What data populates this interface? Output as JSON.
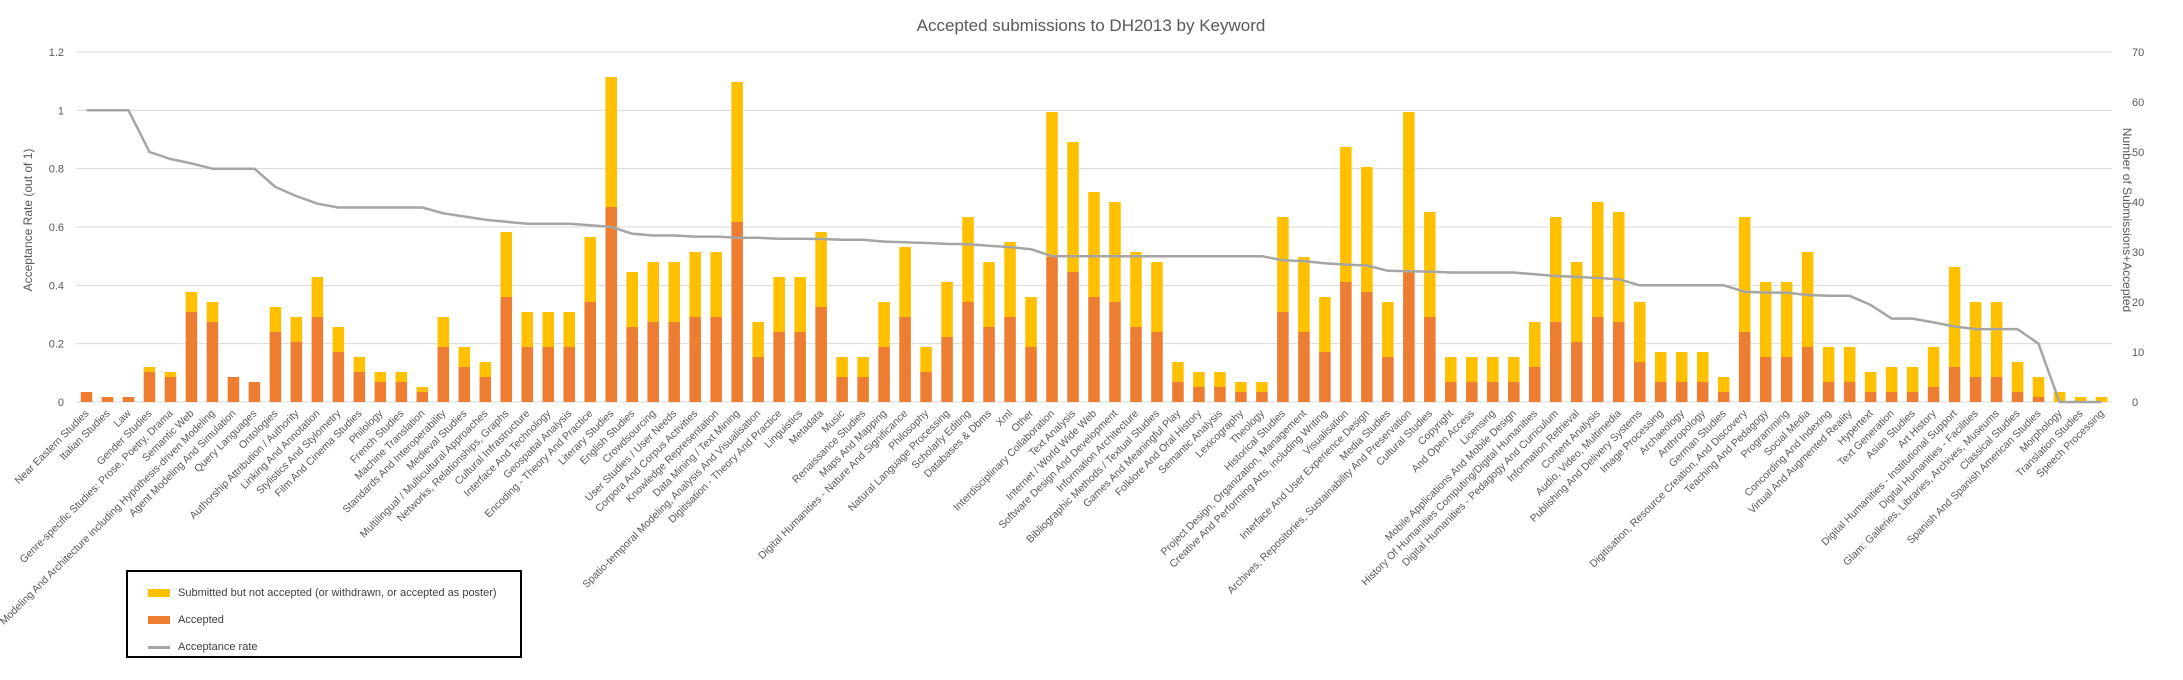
{
  "colors": {
    "submitted": "#FFC000",
    "accepted": "#ED7D31",
    "rate": "#A5A5A5",
    "grid": "#D9D9D9",
    "text": "#595959"
  },
  "legend": {
    "submitted": "Submitted but not accepted (or withdrawn, or accepted as poster)",
    "accepted": "Accepted",
    "rate": "Acceptance rate"
  },
  "chart_data": {
    "type": "bar",
    "stacked": true,
    "title": "Accepted submissions to DH2013 by Keyword",
    "ylabel": "Acceptance Rate (out of 1)",
    "y2label": "Number of Submissions+Accepted",
    "ylim": [
      0,
      1.2
    ],
    "y2lim": [
      0,
      70
    ],
    "yticks": [
      "0",
      "0.2",
      "0.4",
      "0.6",
      "0.8",
      "1",
      "1.2"
    ],
    "y2ticks": [
      "0",
      "10",
      "20",
      "30",
      "40",
      "50",
      "60",
      "70"
    ],
    "grid": true,
    "legend_position": "bottom-left",
    "categories": [
      "Near Eastern Studies",
      "Italian Studies",
      "Law",
      "Gender Studies",
      "Genre-specific Studies: Prose, Poetry, Drama",
      "Semantic Web",
      "Modeling And Architecture including Hypothesis-driven Modeling",
      "Agent Modeling And Simulation",
      "Query Languages",
      "Ontologies",
      "Authorship Attribution / Authority",
      "Linking And Annotation",
      "Stylistics And Stylometry",
      "Film And Cinema Studies",
      "Philology",
      "French Studies",
      "Machine Translation",
      "Standards And Interoperability",
      "Medieval Studies",
      "Multilingual / Multicultural Approaches",
      "Networks, Relationships, Graphs",
      "Cultural Infrastructure",
      "Interface And Technology",
      "Geospatial Analysis",
      "Encoding - Theory And Practice",
      "Literary Studies",
      "English Studies",
      "Crowdsourcing",
      "User Studies / User Needs",
      "Corpora And Corpus Activities",
      "Knowledge Representation",
      "Data Mining / Text Mining",
      "Spatio-temporal Modeling, Analysis And Visualisation",
      "Digitisation - Theory And Practice",
      "Linguistics",
      "Metadata",
      "Music",
      "Renaissance Studies",
      "Maps And Mapping",
      "Digital Humanities - Nature And Significance",
      "Philosophy",
      "Natural Language Processing",
      "Scholarly Editing",
      "Databases & Dbms",
      "Xml",
      "Other",
      "Interdisciplinary Collaboration",
      "Text Analysis",
      "Internet / World Wide Web",
      "Software Design And Development",
      "Information Architecture",
      "Bibliographic Methods / Textual Studies",
      "Games And Meaningful Play",
      "Folklore And Oral History",
      "Semantic Analysis",
      "Lexicography",
      "Theology",
      "Historical Studies",
      "Project Design, Organization, Management",
      "Creative And Performing Arts, including Writing",
      "Visualisation",
      "Interface And User Experience Design",
      "Media Studies",
      "Archives, Repositories, Sustainability And Preservation",
      "Cultural Studies",
      "Copyright",
      "And Open Access",
      "Licensing",
      "Mobile Applications And Mobile Design",
      "History Of Humanities Computing/Digital Humanities",
      "Digital Humanities - Pedagogy And Curriculum",
      "Information Retrieval",
      "Content Analysis",
      "Audio, Video, Multimedia",
      "Publishing And Delivery Systems",
      "Image Processing",
      "Archaeology",
      "Anthropology",
      "German Studies",
      "Digitisation, Resource Creation, And Discovery",
      "Teaching And Pedagogy",
      "Programming",
      "Social Media",
      "Concording And Indexing",
      "Virtual And Augmented Reality",
      "Hypertext",
      "Text Generation",
      "Asian Studies",
      "Art History",
      "Digital Humanities - Institutional Support",
      "Digital Humanities - Facilities",
      "Glam: Galleries, Libraries, Archives, Museums",
      "Classical Studies",
      "Spanish And Spanish American Studies",
      "Morphology",
      "Translation Studies",
      "Speech Processing"
    ],
    "series": [
      {
        "name": "Accepted",
        "axis": "secondary",
        "values": [
          2,
          1,
          1,
          6,
          5,
          18,
          16,
          5,
          4,
          14,
          12,
          17,
          10,
          6,
          4,
          4,
          2,
          11,
          7,
          5,
          21,
          11,
          11,
          11,
          20,
          39,
          15,
          16,
          16,
          17,
          17,
          36,
          9,
          14,
          14,
          19,
          5,
          5,
          11,
          17,
          6,
          13,
          20,
          15,
          17,
          11,
          29,
          26,
          21,
          20,
          15,
          14,
          4,
          3,
          3,
          2,
          2,
          18,
          14,
          10,
          24,
          22,
          9,
          26,
          17,
          4,
          4,
          4,
          4,
          7,
          16,
          12,
          17,
          16,
          8,
          4,
          4,
          4,
          2,
          14,
          9,
          9,
          11,
          4,
          4,
          2,
          2,
          2,
          3,
          7,
          5,
          5,
          2,
          1,
          0,
          0,
          0
        ]
      },
      {
        "name": "Submitted but not accepted (or withdrawn, or accepted as poster)",
        "axis": "secondary",
        "values": [
          0,
          0,
          0,
          1,
          1,
          4,
          4,
          0,
          0,
          5,
          5,
          8,
          5,
          3,
          2,
          2,
          1,
          6,
          4,
          3,
          13,
          7,
          7,
          7,
          13,
          26,
          11,
          12,
          12,
          13,
          13,
          28,
          7,
          11,
          11,
          15,
          4,
          4,
          9,
          14,
          5,
          11,
          17,
          13,
          15,
          10,
          29,
          26,
          21,
          20,
          15,
          14,
          4,
          3,
          3,
          2,
          2,
          19,
          15,
          11,
          27,
          25,
          11,
          32,
          21,
          5,
          5,
          5,
          5,
          9,
          21,
          16,
          23,
          22,
          12,
          6,
          6,
          6,
          3,
          23,
          15,
          15,
          19,
          7,
          7,
          4,
          5,
          5,
          8,
          20,
          15,
          15,
          6,
          4,
          2,
          1,
          1
        ]
      },
      {
        "name": "Acceptance rate",
        "axis": "primary",
        "type": "line",
        "values": [
          1,
          1,
          1,
          0.857,
          0.833,
          0.818,
          0.8,
          0.8,
          0.8,
          0.737,
          0.706,
          0.68,
          0.667,
          0.667,
          0.667,
          0.667,
          0.667,
          0.647,
          0.636,
          0.625,
          0.618,
          0.611,
          0.611,
          0.611,
          0.606,
          0.6,
          0.577,
          0.571,
          0.571,
          0.567,
          0.567,
          0.563,
          0.563,
          0.56,
          0.56,
          0.559,
          0.556,
          0.556,
          0.55,
          0.548,
          0.545,
          0.542,
          0.541,
          0.536,
          0.531,
          0.524,
          0.5,
          0.5,
          0.5,
          0.5,
          0.5,
          0.5,
          0.5,
          0.5,
          0.5,
          0.5,
          0.5,
          0.486,
          0.483,
          0.476,
          0.471,
          0.468,
          0.45,
          0.448,
          0.447,
          0.444,
          0.444,
          0.444,
          0.444,
          0.438,
          0.432,
          0.429,
          0.425,
          0.421,
          0.4,
          0.4,
          0.4,
          0.4,
          0.4,
          0.378,
          0.375,
          0.375,
          0.367,
          0.364,
          0.364,
          0.333,
          0.286,
          0.286,
          0.273,
          0.259,
          0.25,
          0.25,
          0.25,
          0.2,
          0,
          0,
          0
        ]
      }
    ]
  }
}
